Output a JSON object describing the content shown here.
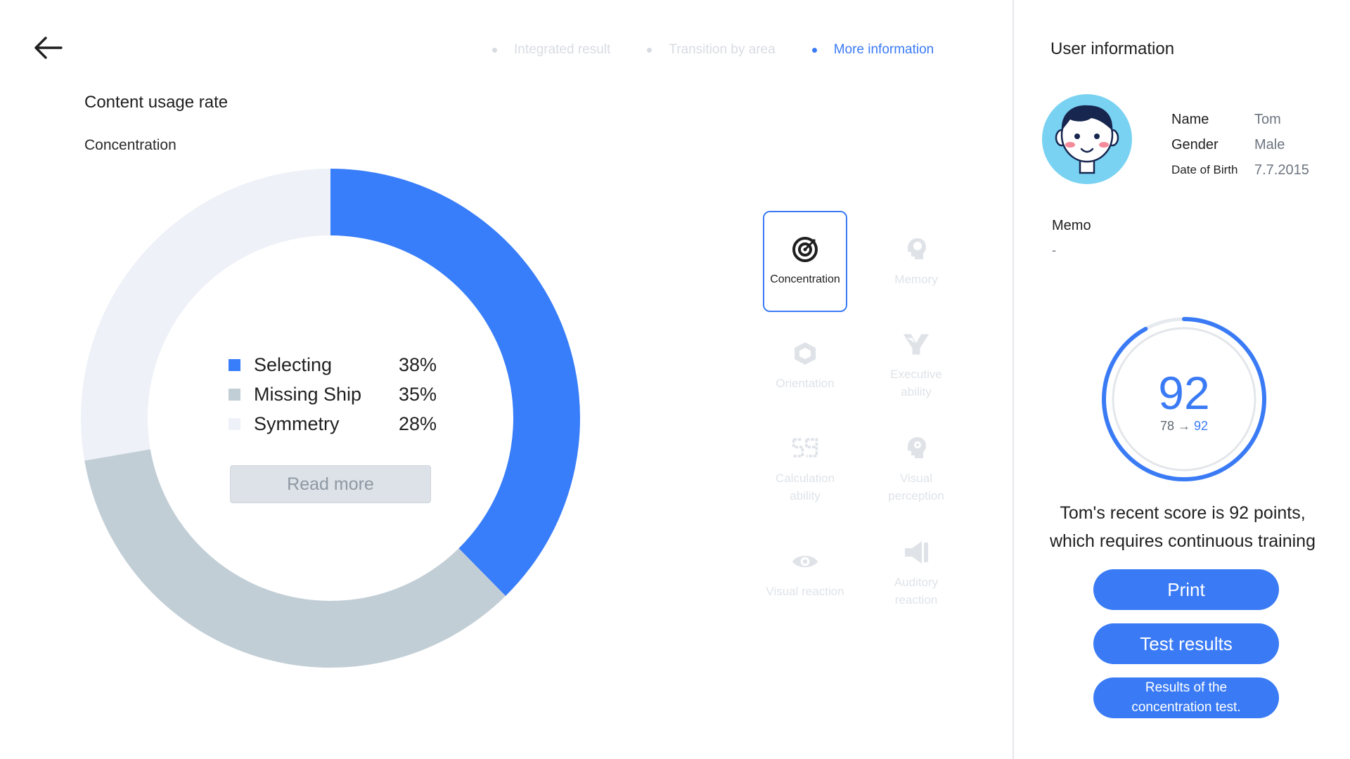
{
  "nav": {
    "back_icon": "arrow-left-icon",
    "tabs": [
      {
        "label": "Integrated result",
        "active": false
      },
      {
        "label": "Transition by area",
        "active": false
      },
      {
        "label": "More information",
        "active": true
      }
    ]
  },
  "content": {
    "title": "Content usage rate",
    "subtitle": "Concentration",
    "read_more_label": "Read more"
  },
  "chart_data": {
    "type": "pie",
    "title": "",
    "categories": [
      "Selecting",
      "Missing Ship",
      "Symmetry"
    ],
    "values": [
      38,
      35,
      28
    ],
    "value_labels": [
      "38%",
      "35%",
      "28%"
    ],
    "colors": [
      "#387df9",
      "#c2ced6",
      "#eef1f7"
    ],
    "donut": true,
    "legend_position": "center"
  },
  "categories": [
    {
      "label": "Concentration",
      "icon": "target-icon",
      "active": true
    },
    {
      "label": "Memory",
      "icon": "brain-head-icon",
      "active": false
    },
    {
      "label": "Orientation",
      "icon": "cube-icon",
      "active": false
    },
    {
      "label": "Executive ability",
      "icon": "fork-arrows-icon",
      "active": false
    },
    {
      "label": "Calculation ability",
      "icon": "digits-icon",
      "active": false
    },
    {
      "label": "Visual perception",
      "icon": "head-gear-icon",
      "active": false
    },
    {
      "label": "Visual reaction",
      "icon": "eye-icon",
      "active": false
    },
    {
      "label": "Auditory reaction",
      "icon": "speaker-icon",
      "active": false
    }
  ],
  "user": {
    "title": "User information",
    "avatar_icon": "boy-avatar-icon",
    "fields": [
      {
        "key": "Name",
        "value": "Tom"
      },
      {
        "key": "Gender",
        "value": "Male"
      },
      {
        "key": "Date of Birth",
        "value": "7.7.2015"
      }
    ],
    "memo_label": "Memo",
    "memo_value": "-"
  },
  "score": {
    "value": "92",
    "from": "78",
    "arrow": "→",
    "to": "92",
    "progress": 0.92,
    "message_line1": "Tom's recent score is 92 points,",
    "message_line2": "which requires continuous training"
  },
  "buttons": {
    "print": "Print",
    "test_results": "Test results",
    "concentration_results": "Results of the concentration test."
  },
  "colors": {
    "accent": "#3a7bf5",
    "inactive": "#d8dce2"
  }
}
